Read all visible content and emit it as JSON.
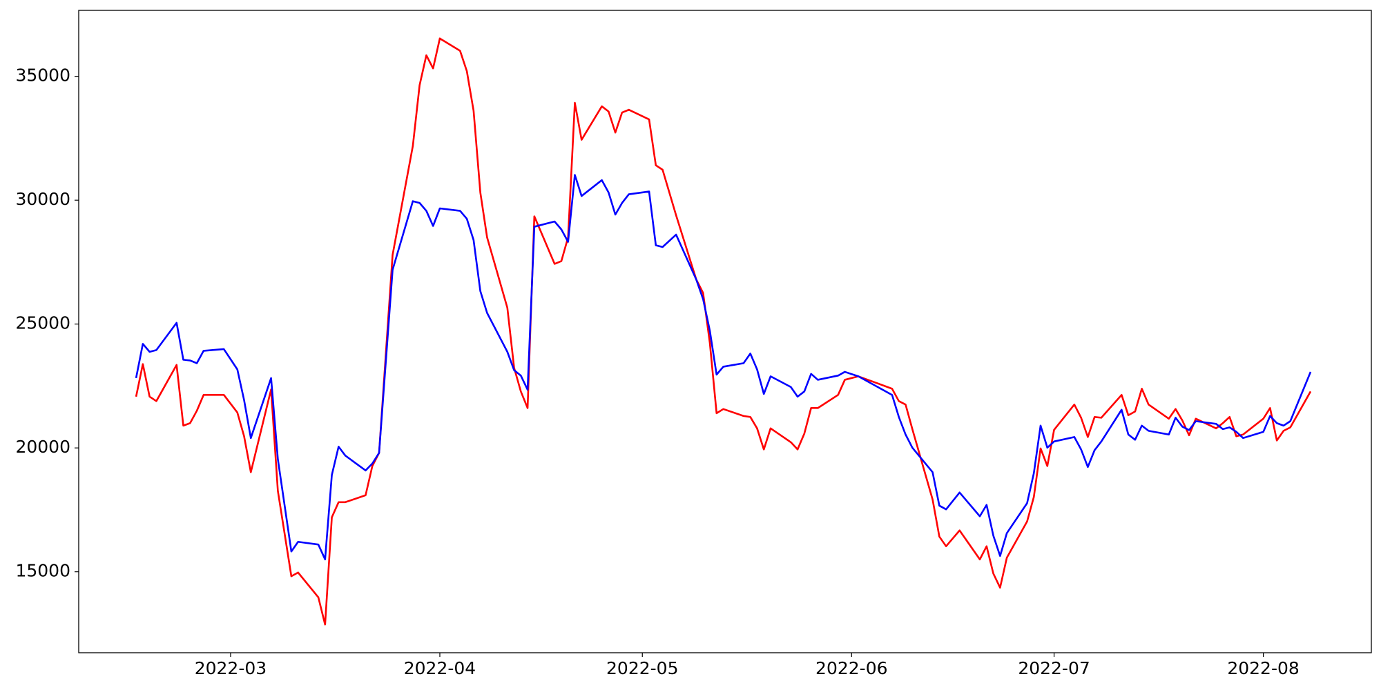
{
  "chart_data": {
    "type": "line",
    "x": [
      46,
      47,
      48,
      49,
      52,
      53,
      54,
      55,
      56,
      59,
      61,
      62,
      63,
      66,
      67,
      69,
      70,
      73,
      74,
      75,
      76,
      77,
      80,
      81,
      82,
      84,
      87,
      88,
      89,
      90,
      91,
      94,
      95,
      96,
      97,
      98,
      101,
      102,
      103,
      104,
      105,
      108,
      109,
      110,
      111,
      112,
      115,
      116,
      117,
      118,
      119,
      122,
      123,
      124,
      126,
      129,
      130,
      131,
      132,
      133,
      136,
      137,
      138,
      139,
      140,
      143,
      144,
      145,
      146,
      147,
      150,
      151,
      153,
      158,
      159,
      160,
      161,
      164,
      165,
      166,
      168,
      171,
      172,
      173,
      174,
      175,
      178,
      179,
      180,
      181,
      182,
      185,
      186,
      187,
      188,
      189,
      192,
      193,
      194,
      195,
      196,
      199,
      200,
      201,
      202,
      203,
      206,
      207,
      208,
      209,
      210,
      213,
      214,
      215,
      216,
      217,
      220
    ],
    "series": [
      {
        "color": "#ff0000",
        "values": [
          22070,
          23385,
          22070,
          21890,
          23350,
          20900,
          21000,
          21500,
          22140,
          22140,
          21430,
          20470,
          19020,
          22360,
          18270,
          14820,
          14970,
          13970,
          12870,
          17200,
          17810,
          17810,
          18090,
          19270,
          19800,
          27790,
          32190,
          34640,
          35850,
          35320,
          36530,
          36030,
          35210,
          33610,
          30310,
          28500,
          25660,
          23240,
          22280,
          21610,
          29350,
          27430,
          27540,
          28500,
          33930,
          32440,
          33790,
          33580,
          32730,
          33540,
          33650,
          33260,
          31410,
          31230,
          29390,
          26790,
          26260,
          24240,
          21400,
          21570,
          21290,
          21250,
          20790,
          19940,
          20790,
          20230,
          19940,
          20580,
          21610,
          21610,
          22140,
          22750,
          22890,
          22390,
          21890,
          21750,
          20760,
          17920,
          16420,
          16030,
          16670,
          15500,
          16030,
          14930,
          14360,
          15570,
          17030,
          18020,
          19980,
          19270,
          20730,
          21750,
          21220,
          20440,
          21250,
          21220,
          22140,
          21320,
          21470,
          22390,
          21750,
          21180,
          21570,
          21110,
          20510,
          21180,
          20790,
          21000,
          21250,
          20470,
          20540,
          21180,
          21610,
          20300,
          20690,
          20830,
          22280
        ]
      },
      {
        "color": "#0000ff",
        "values": [
          22820,
          24200,
          23880,
          23950,
          25050,
          23560,
          23530,
          23420,
          23920,
          23990,
          23170,
          21930,
          20400,
          22820,
          19550,
          15820,
          16210,
          16100,
          15500,
          18910,
          20050,
          19690,
          19090,
          19370,
          19800,
          27190,
          29960,
          29890,
          29570,
          28960,
          29670,
          29570,
          29250,
          28390,
          26330,
          25450,
          23880,
          23140,
          22920,
          22350,
          28930,
          29140,
          28820,
          28320,
          31020,
          30170,
          30810,
          30310,
          29420,
          29890,
          30240,
          30350,
          28180,
          28110,
          28610,
          26790,
          26010,
          24730,
          22960,
          23280,
          23420,
          23810,
          23170,
          22180,
          22890,
          22460,
          22070,
          22280,
          22990,
          22750,
          22920,
          23070,
          22890,
          22140,
          21250,
          20540,
          20010,
          19020,
          17670,
          17520,
          18200,
          17240,
          17700,
          16460,
          15640,
          16560,
          17770,
          18980,
          20900,
          20010,
          20260,
          20440,
          19940,
          19230,
          19910,
          20260,
          21540,
          20540,
          20330,
          20900,
          20690,
          20540,
          21220,
          20860,
          20720,
          21080,
          20970,
          20760,
          20830,
          20650,
          20400,
          20650,
          21290,
          21000,
          20900,
          21080,
          23070
        ]
      }
    ],
    "xlim": [
      37.5,
      229
    ],
    "ylim": [
      11732,
      37664
    ],
    "xticks": [
      {
        "value": 60,
        "label": "2022-03"
      },
      {
        "value": 91,
        "label": "2022-04"
      },
      {
        "value": 121,
        "label": "2022-05"
      },
      {
        "value": 152,
        "label": "2022-06"
      },
      {
        "value": 182,
        "label": "2022-07"
      },
      {
        "value": 213,
        "label": "2022-08"
      }
    ],
    "yticks": [
      15000,
      20000,
      25000,
      30000,
      35000
    ]
  }
}
